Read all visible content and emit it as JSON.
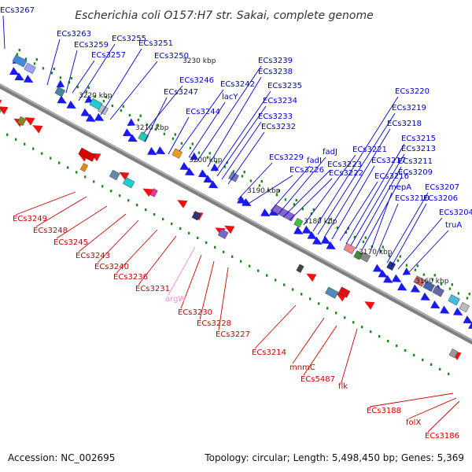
{
  "title": "Escherichia coli O157:H7 str. Sakai, complete genome",
  "accession": "Accession: NC_002695",
  "summary": "Topology: circular; Length: 5,498,450 bp; Genes: 5,369",
  "colors": {
    "forward_label": "#0000cc",
    "reverse_label": "#cc0000",
    "rna_label": "#ff88cc",
    "forward_arrow": "#1a1aee",
    "reverse_arrow": "#ee1111",
    "backbone": "#8a8a8a",
    "tick": "#1a8a1a"
  },
  "scale_labels": [
    "3230 kbp",
    "3220 kbp",
    "3210 kbp",
    "3200 kbp",
    "3190 kbp",
    "3180 kbp",
    "3170 kbp",
    "3160 kbp"
  ],
  "forward_labels": [
    "ECs3267",
    "ECs3263",
    "ECs3259",
    "ECs3257",
    "ECs3255",
    "ECs3251",
    "ECs3250",
    "ECs3246",
    "ECs3247",
    "ECs3244",
    "ECs3242",
    "lacY",
    "ECs3239",
    "ECs3238",
    "ECs3235",
    "ECs3234",
    "ECs3233",
    "ECs3232",
    "ECs3229",
    "ECs3226",
    "fadI",
    "fadJ",
    "ECs3223",
    "ECs3222",
    "ECs3221",
    "ECs3220",
    "ECs3219",
    "ECs3218",
    "ECs3217",
    "ECs3216",
    "ECs3215",
    "ECs3213",
    "ECs3211",
    "ECs3209",
    "mepA",
    "ECs3210",
    "ECs3207",
    "ECs3206",
    "ECs3204",
    "truA"
  ],
  "reverse_labels": [
    "ECs3249",
    "ECs3248",
    "ECs3245",
    "ECs3243",
    "ECs3240",
    "ECs3236",
    "ECs3231",
    "argW",
    "ECs3230",
    "ECs3228",
    "ECs3227",
    "ECs3214",
    "mnmC",
    "ECs5487",
    "flk",
    "ECs3188",
    "folX",
    "ECs3186"
  ]
}
